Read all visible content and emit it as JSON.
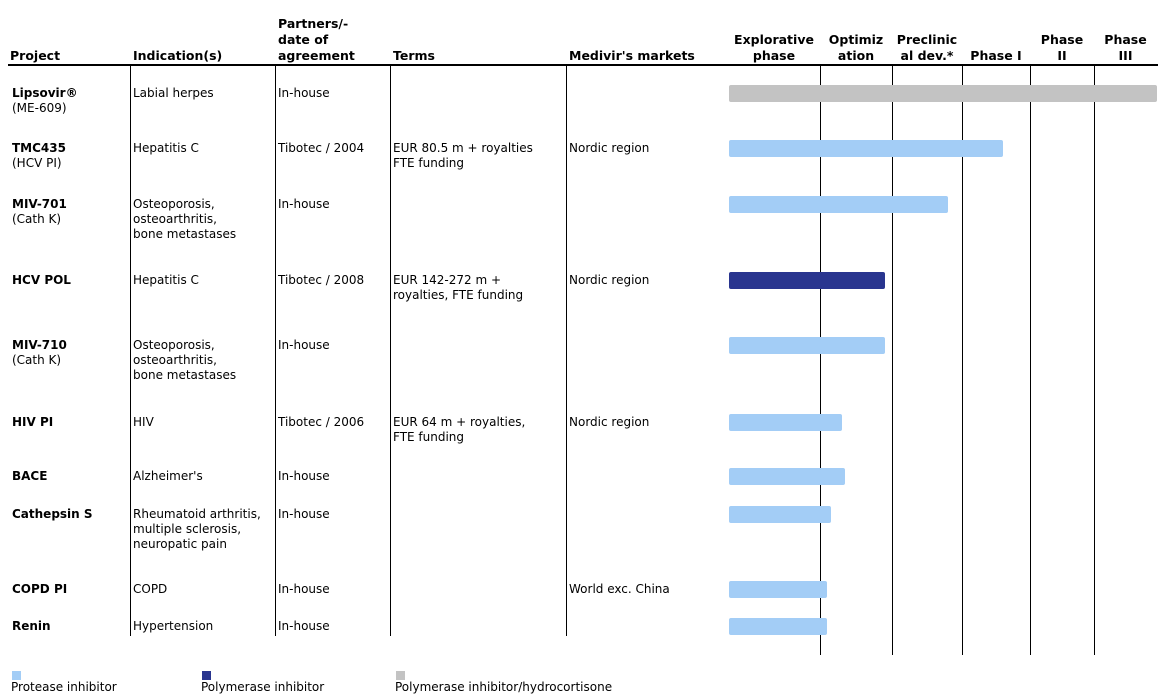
{
  "colors": {
    "protease": "#a3cdf6",
    "polymerase": "#29358f",
    "polymerase_hydro": "#c3c3c3"
  },
  "headers": {
    "project": "Project",
    "indication": "Indication(s)",
    "partners": "Partners/-\ndate of\nagreement",
    "terms": "Terms",
    "markets": "Medivir's markets",
    "phases": [
      "Explorative\nphase",
      "Optimiz\nation",
      "Preclinic\nal dev.*",
      "Phase I",
      "Phase\nII",
      "Phase\nIII"
    ]
  },
  "rows": [
    {
      "project": "Lipsovir®",
      "sub": "(ME-609)",
      "indication": "Labial herpes",
      "partner": "In-house",
      "terms": "",
      "market": ""
    },
    {
      "project": "TMC435",
      "sub": "(HCV PI)",
      "indication": "Hepatitis C",
      "partner": "Tibotec / 2004",
      "terms": "EUR 80.5 m + royalties\nFTE funding",
      "market": "Nordic region"
    },
    {
      "project": "MIV-701",
      "sub": "(Cath K)",
      "indication": "Osteoporosis,\nosteoarthritis,\nbone metastases",
      "partner": "In-house",
      "terms": "",
      "market": ""
    },
    {
      "project": "HCV POL",
      "sub": "",
      "indication": "Hepatitis C",
      "partner": "Tibotec / 2008",
      "terms": "EUR 142-272 m +\nroyalties, FTE funding",
      "market": "Nordic region"
    },
    {
      "project": "MIV-710",
      "sub": "(Cath K)",
      "indication": "Osteoporosis,\nosteoarthritis,\nbone metastases",
      "partner": "In-house",
      "terms": "",
      "market": ""
    },
    {
      "project": "HIV PI",
      "sub": "",
      "indication": "HIV",
      "partner": "Tibotec / 2006",
      "terms": "EUR 64 m + royalties,\nFTE funding",
      "market": "Nordic region"
    },
    {
      "project": "BACE",
      "sub": "",
      "indication": "Alzheimer's",
      "partner": "In-house",
      "terms": "",
      "market": ""
    },
    {
      "project": "Cathepsin S",
      "sub": "",
      "indication": "Rheumatoid arthritis,\nmultiple sclerosis,\nneuropatic pain",
      "partner": "In-house",
      "terms": "",
      "market": ""
    },
    {
      "project": "COPD PI",
      "sub": "",
      "indication": "COPD",
      "partner": "In-house",
      "terms": "",
      "market": "World exc. China"
    },
    {
      "project": "Renin",
      "sub": "",
      "indication": "Hypertension",
      "partner": "In-house",
      "terms": "",
      "market": ""
    }
  ],
  "chart_data": {
    "type": "bar",
    "orientation": "horizontal",
    "categories": [
      "Lipsovir®",
      "TMC435",
      "MIV-701",
      "HCV POL",
      "MIV-710",
      "HIV PI",
      "BACE",
      "Cathepsin S",
      "COPD PI",
      "Renin"
    ],
    "phases": [
      "Explorative phase",
      "Optimization",
      "Preclinical dev.*",
      "Phase I",
      "Phase II",
      "Phase III"
    ],
    "values": [
      6.0,
      3.6,
      2.8,
      1.9,
      1.9,
      1.3,
      1.35,
      1.15,
      1.1,
      1.1
    ],
    "series_type": [
      "Polymerase inhibitor/hydrocortisone",
      "Protease inhibitor",
      "Protease inhibitor",
      "Polymerase inhibitor",
      "Protease inhibitor",
      "Protease inhibitor",
      "Protease inhibitor",
      "Protease inhibitor",
      "Protease inhibitor",
      "Protease inhibitor"
    ],
    "xlim": [
      0,
      6
    ],
    "grid": true
  },
  "legend": [
    {
      "label": "Protease inhibitor",
      "key": "protease"
    },
    {
      "label": "Polymerase inhibitor",
      "key": "polymerase"
    },
    {
      "label": "Polymerase inhibitor/hydrocortisone",
      "key": "polymerase_hydro"
    }
  ]
}
